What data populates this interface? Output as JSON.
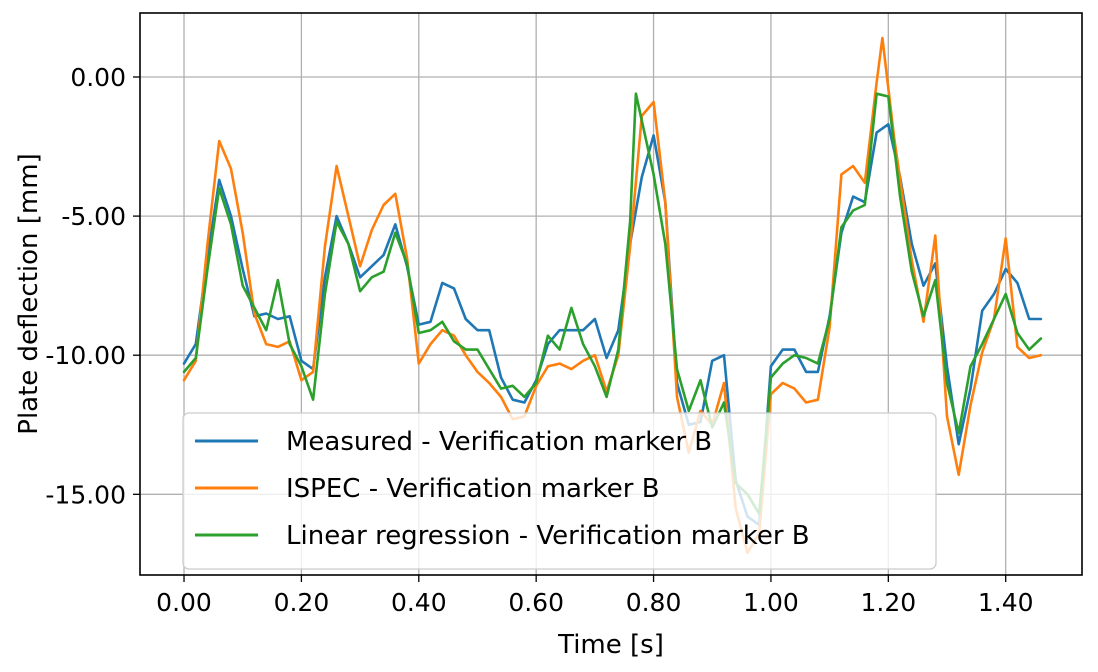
{
  "chart_data": {
    "type": "line",
    "xlabel": "Time [s]",
    "ylabel": "Plate deflection [mm]",
    "xlim": [
      -0.075,
      1.53
    ],
    "ylim": [
      -17.9,
      2.3
    ],
    "xticks": [
      0.0,
      0.2,
      0.4,
      0.6,
      0.8,
      1.0,
      1.2,
      1.4
    ],
    "xtick_labels": [
      "0.00",
      "0.20",
      "0.40",
      "0.60",
      "0.80",
      "1.00",
      "1.20",
      "1.40"
    ],
    "yticks": [
      0.0,
      -5.0,
      -10.0,
      -15.0
    ],
    "ytick_labels": [
      "0.00",
      "-5.00",
      "-10.00",
      "-15.00"
    ],
    "grid": true,
    "legend_position": "lower-left",
    "series": [
      {
        "name": "Measured - Verification marker B",
        "color": "#1f77b4",
        "points": [
          [
            0.0,
            -10.3
          ],
          [
            0.02,
            -9.6
          ],
          [
            0.04,
            -6.5
          ],
          [
            0.06,
            -3.7
          ],
          [
            0.08,
            -5.0
          ],
          [
            0.1,
            -6.9
          ],
          [
            0.12,
            -8.6
          ],
          [
            0.14,
            -8.5
          ],
          [
            0.16,
            -8.7
          ],
          [
            0.18,
            -8.6
          ],
          [
            0.2,
            -10.2
          ],
          [
            0.22,
            -10.5
          ],
          [
            0.24,
            -7.2
          ],
          [
            0.26,
            -5.0
          ],
          [
            0.28,
            -6.0
          ],
          [
            0.3,
            -7.2
          ],
          [
            0.32,
            -6.8
          ],
          [
            0.34,
            -6.4
          ],
          [
            0.36,
            -5.3
          ],
          [
            0.38,
            -6.8
          ],
          [
            0.4,
            -8.9
          ],
          [
            0.42,
            -8.8
          ],
          [
            0.44,
            -7.4
          ],
          [
            0.46,
            -7.6
          ],
          [
            0.48,
            -8.7
          ],
          [
            0.5,
            -9.1
          ],
          [
            0.52,
            -9.1
          ],
          [
            0.54,
            -10.8
          ],
          [
            0.56,
            -11.6
          ],
          [
            0.58,
            -11.7
          ],
          [
            0.6,
            -10.9
          ],
          [
            0.62,
            -9.6
          ],
          [
            0.64,
            -9.1
          ],
          [
            0.66,
            -9.1
          ],
          [
            0.68,
            -9.1
          ],
          [
            0.7,
            -8.7
          ],
          [
            0.72,
            -10.1
          ],
          [
            0.74,
            -9.1
          ],
          [
            0.76,
            -6.0
          ],
          [
            0.78,
            -3.6
          ],
          [
            0.8,
            -2.1
          ],
          [
            0.82,
            -4.5
          ],
          [
            0.84,
            -11.0
          ],
          [
            0.86,
            -12.5
          ],
          [
            0.88,
            -12.4
          ],
          [
            0.9,
            -10.2
          ],
          [
            0.92,
            -10.0
          ],
          [
            0.94,
            -14.5
          ],
          [
            0.96,
            -15.8
          ],
          [
            0.98,
            -16.1
          ],
          [
            1.0,
            -10.4
          ],
          [
            1.02,
            -9.8
          ],
          [
            1.04,
            -9.8
          ],
          [
            1.06,
            -10.6
          ],
          [
            1.08,
            -10.6
          ],
          [
            1.1,
            -8.6
          ],
          [
            1.12,
            -5.6
          ],
          [
            1.14,
            -4.3
          ],
          [
            1.16,
            -4.5
          ],
          [
            1.18,
            -2.0
          ],
          [
            1.2,
            -1.7
          ],
          [
            1.22,
            -3.6
          ],
          [
            1.24,
            -6.0
          ],
          [
            1.26,
            -7.5
          ],
          [
            1.28,
            -6.7
          ],
          [
            1.3,
            -10.4
          ],
          [
            1.32,
            -13.2
          ],
          [
            1.34,
            -11.2
          ],
          [
            1.36,
            -8.4
          ],
          [
            1.38,
            -7.8
          ],
          [
            1.4,
            -6.9
          ],
          [
            1.42,
            -7.4
          ],
          [
            1.44,
            -8.7
          ],
          [
            1.46,
            -8.7
          ]
        ]
      },
      {
        "name": "ISPEC - Verification marker B",
        "color": "#ff7f0e",
        "points": [
          [
            0.0,
            -10.9
          ],
          [
            0.02,
            -10.2
          ],
          [
            0.04,
            -6.0
          ],
          [
            0.06,
            -2.3
          ],
          [
            0.08,
            -3.3
          ],
          [
            0.1,
            -5.6
          ],
          [
            0.12,
            -8.5
          ],
          [
            0.14,
            -9.6
          ],
          [
            0.16,
            -9.7
          ],
          [
            0.18,
            -9.5
          ],
          [
            0.2,
            -10.9
          ],
          [
            0.22,
            -10.6
          ],
          [
            0.24,
            -6.1
          ],
          [
            0.26,
            -3.2
          ],
          [
            0.28,
            -5.0
          ],
          [
            0.3,
            -6.8
          ],
          [
            0.32,
            -5.5
          ],
          [
            0.34,
            -4.6
          ],
          [
            0.36,
            -4.2
          ],
          [
            0.38,
            -6.5
          ],
          [
            0.4,
            -10.3
          ],
          [
            0.42,
            -9.6
          ],
          [
            0.44,
            -9.1
          ],
          [
            0.46,
            -9.3
          ],
          [
            0.48,
            -10.0
          ],
          [
            0.5,
            -10.6
          ],
          [
            0.52,
            -11.0
          ],
          [
            0.54,
            -11.5
          ],
          [
            0.56,
            -12.3
          ],
          [
            0.58,
            -12.2
          ],
          [
            0.6,
            -11.1
          ],
          [
            0.62,
            -10.4
          ],
          [
            0.64,
            -10.3
          ],
          [
            0.66,
            -10.5
          ],
          [
            0.68,
            -10.2
          ],
          [
            0.7,
            -10.0
          ],
          [
            0.72,
            -11.3
          ],
          [
            0.74,
            -10.0
          ],
          [
            0.76,
            -6.1
          ],
          [
            0.78,
            -1.4
          ],
          [
            0.8,
            -0.9
          ],
          [
            0.82,
            -4.5
          ],
          [
            0.84,
            -11.5
          ],
          [
            0.86,
            -13.5
          ],
          [
            0.88,
            -12.0
          ],
          [
            0.9,
            -12.5
          ],
          [
            0.92,
            -11.0
          ],
          [
            0.94,
            -15.5
          ],
          [
            0.96,
            -17.1
          ],
          [
            0.98,
            -16.4
          ],
          [
            1.0,
            -11.4
          ],
          [
            1.02,
            -11.0
          ],
          [
            1.04,
            -11.2
          ],
          [
            1.06,
            -11.7
          ],
          [
            1.08,
            -11.6
          ],
          [
            1.1,
            -9.0
          ],
          [
            1.12,
            -3.5
          ],
          [
            1.14,
            -3.2
          ],
          [
            1.16,
            -3.8
          ],
          [
            1.18,
            -0.2
          ],
          [
            1.19,
            1.4
          ],
          [
            1.21,
            -2.2
          ],
          [
            1.24,
            -6.6
          ],
          [
            1.26,
            -8.8
          ],
          [
            1.28,
            -5.7
          ],
          [
            1.3,
            -12.2
          ],
          [
            1.32,
            -14.3
          ],
          [
            1.34,
            -11.8
          ],
          [
            1.36,
            -9.9
          ],
          [
            1.38,
            -8.7
          ],
          [
            1.4,
            -5.8
          ],
          [
            1.42,
            -9.7
          ],
          [
            1.44,
            -10.1
          ],
          [
            1.46,
            -10.0
          ]
        ]
      },
      {
        "name": "Linear regression - Verification marker B",
        "color": "#2ca02c",
        "points": [
          [
            0.0,
            -10.6
          ],
          [
            0.02,
            -10.1
          ],
          [
            0.04,
            -6.9
          ],
          [
            0.06,
            -4.0
          ],
          [
            0.08,
            -5.3
          ],
          [
            0.1,
            -7.5
          ],
          [
            0.12,
            -8.3
          ],
          [
            0.14,
            -9.1
          ],
          [
            0.16,
            -7.3
          ],
          [
            0.18,
            -9.6
          ],
          [
            0.2,
            -10.4
          ],
          [
            0.22,
            -11.6
          ],
          [
            0.24,
            -7.8
          ],
          [
            0.26,
            -5.2
          ],
          [
            0.28,
            -6.0
          ],
          [
            0.3,
            -7.7
          ],
          [
            0.32,
            -7.2
          ],
          [
            0.34,
            -7.0
          ],
          [
            0.36,
            -5.6
          ],
          [
            0.38,
            -6.7
          ],
          [
            0.4,
            -9.2
          ],
          [
            0.42,
            -9.1
          ],
          [
            0.44,
            -8.8
          ],
          [
            0.46,
            -9.5
          ],
          [
            0.48,
            -9.8
          ],
          [
            0.5,
            -9.8
          ],
          [
            0.52,
            -10.5
          ],
          [
            0.54,
            -11.2
          ],
          [
            0.56,
            -11.1
          ],
          [
            0.58,
            -11.5
          ],
          [
            0.6,
            -11.0
          ],
          [
            0.62,
            -9.3
          ],
          [
            0.64,
            -9.8
          ],
          [
            0.66,
            -8.3
          ],
          [
            0.68,
            -9.6
          ],
          [
            0.7,
            -10.4
          ],
          [
            0.72,
            -11.5
          ],
          [
            0.74,
            -9.8
          ],
          [
            0.76,
            -5.2
          ],
          [
            0.77,
            -0.6
          ],
          [
            0.8,
            -3.5
          ],
          [
            0.82,
            -6.0
          ],
          [
            0.84,
            -10.5
          ],
          [
            0.86,
            -12.0
          ],
          [
            0.88,
            -10.9
          ],
          [
            0.9,
            -12.6
          ],
          [
            0.92,
            -11.7
          ],
          [
            0.94,
            -14.6
          ],
          [
            0.96,
            -15.0
          ],
          [
            0.98,
            -15.7
          ],
          [
            1.0,
            -10.8
          ],
          [
            1.02,
            -10.3
          ],
          [
            1.04,
            -10.0
          ],
          [
            1.06,
            -10.1
          ],
          [
            1.08,
            -10.3
          ],
          [
            1.1,
            -8.7
          ],
          [
            1.12,
            -5.4
          ],
          [
            1.14,
            -4.8
          ],
          [
            1.16,
            -4.6
          ],
          [
            1.18,
            -0.6
          ],
          [
            1.2,
            -0.7
          ],
          [
            1.22,
            -4.3
          ],
          [
            1.24,
            -7.0
          ],
          [
            1.26,
            -8.6
          ],
          [
            1.28,
            -7.3
          ],
          [
            1.3,
            -11.0
          ],
          [
            1.32,
            -12.8
          ],
          [
            1.34,
            -10.4
          ],
          [
            1.36,
            -9.6
          ],
          [
            1.38,
            -8.7
          ],
          [
            1.4,
            -7.8
          ],
          [
            1.42,
            -9.2
          ],
          [
            1.44,
            -9.8
          ],
          [
            1.46,
            -9.4
          ]
        ]
      }
    ]
  }
}
